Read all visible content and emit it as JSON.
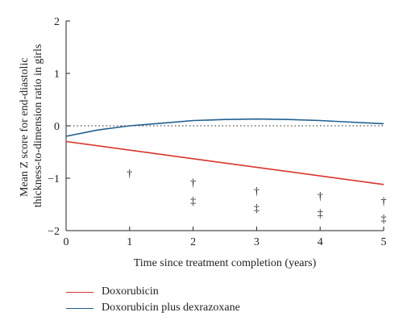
{
  "chart_data": {
    "type": "line",
    "xlabel": "Time since treatment completion (years)",
    "ylabel_lines": [
      "Mean Z score for end-diastolic",
      "thickness-to-dimension ratio in girls"
    ],
    "xlim": [
      0,
      5
    ],
    "ylim": [
      -2,
      2
    ],
    "x_ticks": [
      0,
      1,
      2,
      3,
      4,
      5
    ],
    "y_ticks": [
      2,
      1,
      0,
      -1,
      -2
    ],
    "x_tick_labels": [
      "0",
      "1",
      "2",
      "3",
      "4",
      "5"
    ],
    "y_tick_labels": [
      "2",
      "1",
      "0",
      "−1",
      "−2"
    ],
    "reference_line": {
      "y": 0,
      "style": "dotted"
    },
    "grid": false,
    "legend_position": "bottom-left",
    "series": [
      {
        "name": "Doxorubicin",
        "color": "#d9342b",
        "x": [
          0,
          5
        ],
        "values": [
          -0.3,
          -1.12
        ]
      },
      {
        "name": "Doxorubicin plus dexrazoxane",
        "color": "#1f5f8f",
        "x": [
          0,
          0.5,
          1,
          1.5,
          2,
          2.5,
          3,
          3.5,
          4,
          4.5,
          5
        ],
        "values": [
          -0.2,
          -0.08,
          0.0,
          0.05,
          0.1,
          0.12,
          0.13,
          0.12,
          0.1,
          0.07,
          0.04
        ]
      }
    ],
    "annotations": [
      {
        "text": "†",
        "x": 1,
        "y": -0.9
      },
      {
        "text": "†",
        "x": 2,
        "y": -1.08
      },
      {
        "text": "‡",
        "x": 2,
        "y": -1.42
      },
      {
        "text": "†",
        "x": 3,
        "y": -1.24
      },
      {
        "text": "‡",
        "x": 3,
        "y": -1.56
      },
      {
        "text": "†",
        "x": 4,
        "y": -1.33
      },
      {
        "text": "‡",
        "x": 4,
        "y": -1.66
      },
      {
        "text": "†",
        "x": 5,
        "y": -1.43
      },
      {
        "text": "‡",
        "x": 5,
        "y": -1.76
      }
    ]
  }
}
